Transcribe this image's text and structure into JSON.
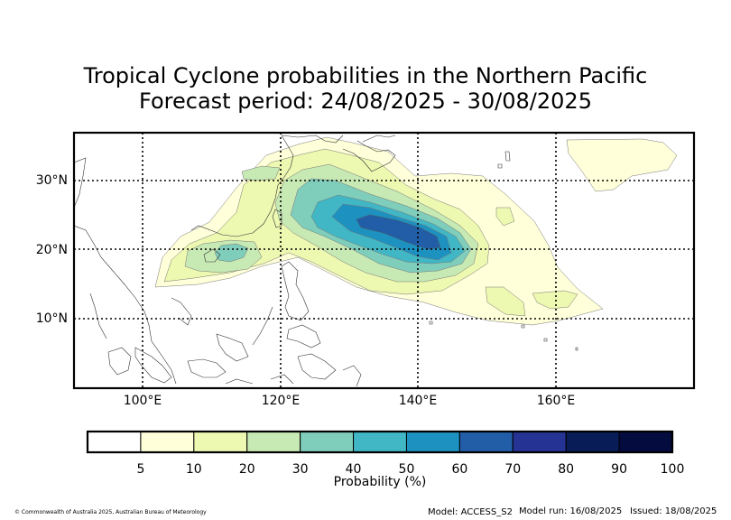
{
  "title_line1": "Tropical Cyclone probabilities in the Northern Pacific",
  "title_line2": "Forecast period: 24/08/2025 - 30/08/2025",
  "axes": {
    "lon_labels": [
      "100°E",
      "120°E",
      "140°E",
      "160°E"
    ],
    "lat_labels": [
      "30°N",
      "20°N",
      "10°N"
    ],
    "lon_range": [
      90,
      180
    ],
    "lat_range": [
      0,
      37
    ],
    "grid": "dotted"
  },
  "colorbar": {
    "label": "Probability (%)",
    "ticks": [
      "5",
      "10",
      "20",
      "30",
      "40",
      "50",
      "60",
      "70",
      "80",
      "90",
      "100"
    ],
    "colors": [
      "#ffffff",
      "#ffffd9",
      "#edf8b1",
      "#c7e9b4",
      "#7fcdbb",
      "#41b6c4",
      "#1d91c0",
      "#225ea8",
      "#253494",
      "#081d58",
      "#040b3f"
    ]
  },
  "probability_levels": [
    {
      "level": "5-10",
      "color": "#ffffd9"
    },
    {
      "level": "10-20",
      "color": "#edf8b1"
    },
    {
      "level": "20-30",
      "color": "#c7e9b4"
    },
    {
      "level": "30-40",
      "color": "#7fcdbb"
    },
    {
      "level": "40-50",
      "color": "#41b6c4"
    },
    {
      "level": "50-60",
      "color": "#1d91c0"
    },
    {
      "level": "60-70",
      "color": "#225ea8"
    }
  ],
  "footer": {
    "copyright": "© Commonwealth of Australia 2025, Australian Bureau of Meteorology",
    "model": "Model: ACCESS_S2",
    "model_run": "Model run: 16/08/2025",
    "issued": "Issued: 18/08/2025"
  }
}
